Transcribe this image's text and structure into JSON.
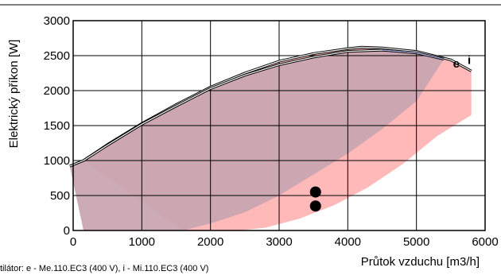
{
  "chart_data": {
    "type": "area",
    "title": "",
    "xlabel": "Průtok vzduchu [m3/h]",
    "ylabel": "Elektrický příkon [W]",
    "xlim": [
      0,
      6000
    ],
    "ylim": [
      0,
      3000
    ],
    "xticks": [
      0,
      1000,
      2000,
      3000,
      4000,
      5000,
      6000
    ],
    "yticks": [
      0,
      500,
      1000,
      1500,
      2000,
      2500,
      3000
    ],
    "grid": true,
    "legend_note": "tilátor: e - Me.110.EC3 (400 V), i - Mi.110.EC3 (400 V)",
    "colors": {
      "e_fill": "#c8a4b0",
      "i_fill": "#ffb9b9",
      "curve": "#000000",
      "curve_highlight": "#ffffff",
      "curve_tint": "#8080e0",
      "grid": "#000000",
      "point": "#000000"
    },
    "series": [
      {
        "name": "e",
        "upper": [
          [
            -50,
            920
          ],
          [
            150,
            1000
          ],
          [
            500,
            1220
          ],
          [
            1000,
            1520
          ],
          [
            1500,
            1780
          ],
          [
            2000,
            2030
          ],
          [
            2500,
            2220
          ],
          [
            3000,
            2370
          ],
          [
            3500,
            2480
          ],
          [
            4000,
            2560
          ],
          [
            4500,
            2580
          ],
          [
            5000,
            2540
          ],
          [
            5400,
            2450
          ]
        ],
        "lower": [
          [
            5400,
            2450
          ],
          [
            5000,
            1850
          ],
          [
            4500,
            1450
          ],
          [
            4000,
            1100
          ],
          [
            3500,
            800
          ],
          [
            3000,
            500
          ],
          [
            2500,
            260
          ],
          [
            2000,
            100
          ],
          [
            1600,
            0
          ],
          [
            150,
            0
          ]
        ]
      },
      {
        "name": "i",
        "upper": [
          [
            150,
            1000
          ],
          [
            500,
            1230
          ],
          [
            1000,
            1530
          ],
          [
            1500,
            1800
          ],
          [
            2000,
            2050
          ],
          [
            2500,
            2250
          ],
          [
            3000,
            2420
          ],
          [
            3500,
            2530
          ],
          [
            4000,
            2600
          ],
          [
            4200,
            2620
          ],
          [
            4500,
            2610
          ],
          [
            5000,
            2560
          ],
          [
            5500,
            2440
          ],
          [
            5800,
            2280
          ]
        ],
        "lower": [
          [
            5800,
            2280
          ],
          [
            5800,
            1650
          ],
          [
            5300,
            1350
          ],
          [
            4800,
            950
          ],
          [
            4300,
            620
          ],
          [
            3800,
            360
          ],
          [
            3300,
            170
          ],
          [
            2800,
            40
          ],
          [
            2400,
            0
          ],
          [
            1600,
            0
          ]
        ]
      }
    ],
    "points": [
      {
        "x": 3530,
        "y": 550
      },
      {
        "x": 3530,
        "y": 350
      }
    ],
    "curve_labels": [
      {
        "text": "e",
        "x": 5580,
        "y": 2330
      },
      {
        "text": "i",
        "x": 5770,
        "y": 2380
      }
    ]
  }
}
